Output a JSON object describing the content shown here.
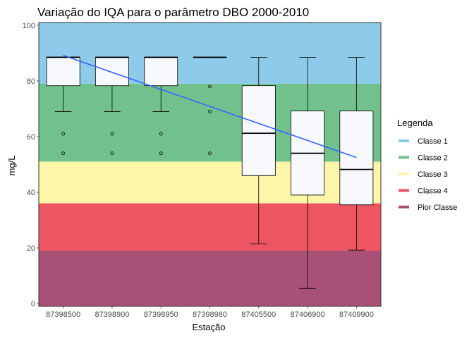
{
  "chart_data": {
    "type": "boxplot",
    "title": "Variação do IQA para o parâmetro DBO 2000-2010",
    "xlabel": "Estação",
    "ylabel": "mg/L",
    "ylim": [
      -1,
      101
    ],
    "yticks": [
      0,
      20,
      40,
      60,
      80,
      100
    ],
    "grid": false,
    "legend_position": "right",
    "legend": {
      "title": "Legenda",
      "items": [
        {
          "label": "Classe 1",
          "color": "#8ecbea"
        },
        {
          "label": "Classe 2",
          "color": "#72c08c"
        },
        {
          "label": "Classe 3",
          "color": "#fdf5a8"
        },
        {
          "label": "Classe 4",
          "color": "#ec5561"
        },
        {
          "label": "Pior Classe",
          "color": "#a95076"
        }
      ]
    },
    "bands": [
      {
        "label": "Classe 1",
        "from": 79,
        "to": 101,
        "color": "#8ecbea"
      },
      {
        "label": "Classe 2",
        "from": 51,
        "to": 79,
        "color": "#72c08c"
      },
      {
        "label": "Classe 3",
        "from": 36,
        "to": 51,
        "color": "#fdf5a8"
      },
      {
        "label": "Classe 4",
        "from": 19,
        "to": 36,
        "color": "#ec5561"
      },
      {
        "label": "Pior Classe",
        "from": -1,
        "to": 19,
        "color": "#a95076"
      }
    ],
    "categories": [
      "87398500",
      "87398900",
      "87398950",
      "87398980",
      "87405500",
      "87406900",
      "87409900"
    ],
    "boxes": [
      {
        "min": 69,
        "q1": 78.3,
        "median": 88.5,
        "q3": 88.5,
        "max": 88.5,
        "outliers": [
          61,
          54
        ]
      },
      {
        "min": 69,
        "q1": 78.3,
        "median": 88.5,
        "q3": 88.5,
        "max": 88.5,
        "outliers": [
          61,
          54
        ]
      },
      {
        "min": 69,
        "q1": 78.3,
        "median": 88.5,
        "q3": 88.5,
        "max": 88.5,
        "outliers": [
          61,
          54
        ]
      },
      {
        "min": 88.5,
        "q1": 88.5,
        "median": 88.5,
        "q3": 88.5,
        "max": 88.5,
        "outliers": [
          78,
          69,
          54
        ]
      },
      {
        "min": 21.5,
        "q1": 46,
        "median": 61.2,
        "q3": 78.3,
        "max": 88.5,
        "outliers": []
      },
      {
        "min": 5.5,
        "q1": 39,
        "median": 54,
        "q3": 69.2,
        "max": 88.5,
        "outliers": []
      },
      {
        "min": 19.2,
        "q1": 35.5,
        "median": 48.2,
        "q3": 69.2,
        "max": 88.5,
        "outliers": []
      }
    ],
    "trend": {
      "color": "#3366ff",
      "start": 89.2,
      "end": 52.5
    },
    "box_fill": "#f8f8ff"
  }
}
